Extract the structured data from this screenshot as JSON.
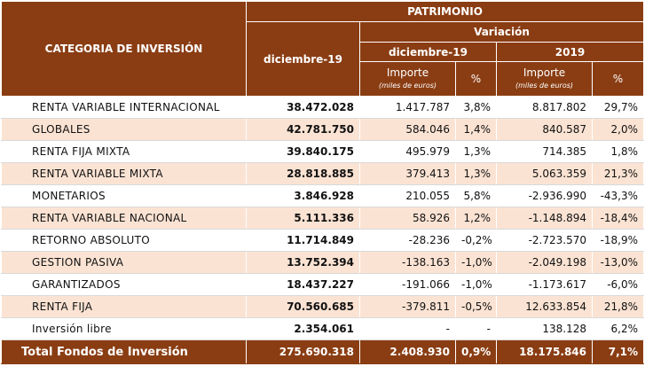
{
  "header": {
    "category": "CATEGORIA DE INVERSIÓN",
    "patrimonio": "PATRIMONIO",
    "variacion": "Variación",
    "period": "diciembre-19",
    "variacion_period_1": "diciembre-19",
    "variacion_period_2": "2019",
    "importe": "Importe",
    "importe_unit": "(miles de euros)",
    "pct": "%"
  },
  "rows": [
    {
      "name": "RENTA VARIABLE INTERNACIONAL",
      "patrimonio": "38.472.028",
      "imp_dic": "1.417.787",
      "pct_dic": "3,8%",
      "imp_2019": "8.817.802",
      "pct_2019": "29,7%"
    },
    {
      "name": "GLOBALES",
      "patrimonio": "42.781.750",
      "imp_dic": "584.046",
      "pct_dic": "1,4%",
      "imp_2019": "840.587",
      "pct_2019": "2,0%"
    },
    {
      "name": "RENTA FIJA MIXTA",
      "patrimonio": "39.840.175",
      "imp_dic": "495.979",
      "pct_dic": "1,3%",
      "imp_2019": "714.385",
      "pct_2019": "1,8%"
    },
    {
      "name": "RENTA VARIABLE MIXTA",
      "patrimonio": "28.818.885",
      "imp_dic": "379.413",
      "pct_dic": "1,3%",
      "imp_2019": "5.063.359",
      "pct_2019": "21,3%"
    },
    {
      "name": "MONETARIOS",
      "patrimonio": "3.846.928",
      "imp_dic": "210.055",
      "pct_dic": "5,8%",
      "imp_2019": "-2.936.990",
      "pct_2019": "-43,3%"
    },
    {
      "name": "RENTA VARIABLE NACIONAL",
      "patrimonio": "5.111.336",
      "imp_dic": "58.926",
      "pct_dic": "1,2%",
      "imp_2019": "-1.148.894",
      "pct_2019": "-18,4%"
    },
    {
      "name": "RETORNO ABSOLUTO",
      "patrimonio": "11.714.849",
      "imp_dic": "-28.236",
      "pct_dic": "-0,2%",
      "imp_2019": "-2.723.570",
      "pct_2019": "-18,9%"
    },
    {
      "name": "GESTION PASIVA",
      "patrimonio": "13.752.394",
      "imp_dic": "-138.163",
      "pct_dic": "-1,0%",
      "imp_2019": "-2.049.198",
      "pct_2019": "-13,0%"
    },
    {
      "name": "GARANTIZADOS",
      "patrimonio": "18.437.227",
      "imp_dic": "-191.066",
      "pct_dic": "-1,0%",
      "imp_2019": "-1.173.617",
      "pct_2019": "-6,0%"
    },
    {
      "name": "RENTA FIJA",
      "patrimonio": "70.560.685",
      "imp_dic": "-379.811",
      "pct_dic": "-0,5%",
      "imp_2019": "12.633.854",
      "pct_2019": "21,8%"
    },
    {
      "name": "Inversión libre",
      "patrimonio": "2.354.061",
      "imp_dic": "-",
      "pct_dic": "-",
      "imp_2019": "138.128",
      "pct_2019": "6,2%"
    }
  ],
  "total": {
    "name": "Total Fondos de Inversión",
    "patrimonio": "275.690.318",
    "imp_dic": "2.408.930",
    "pct_dic": "0,9%",
    "imp_2019": "18.175.846",
    "pct_2019": "7,1%"
  },
  "colors": {
    "header_bg": "#8a3d13",
    "stripe_bg": "#fbe3d3"
  }
}
